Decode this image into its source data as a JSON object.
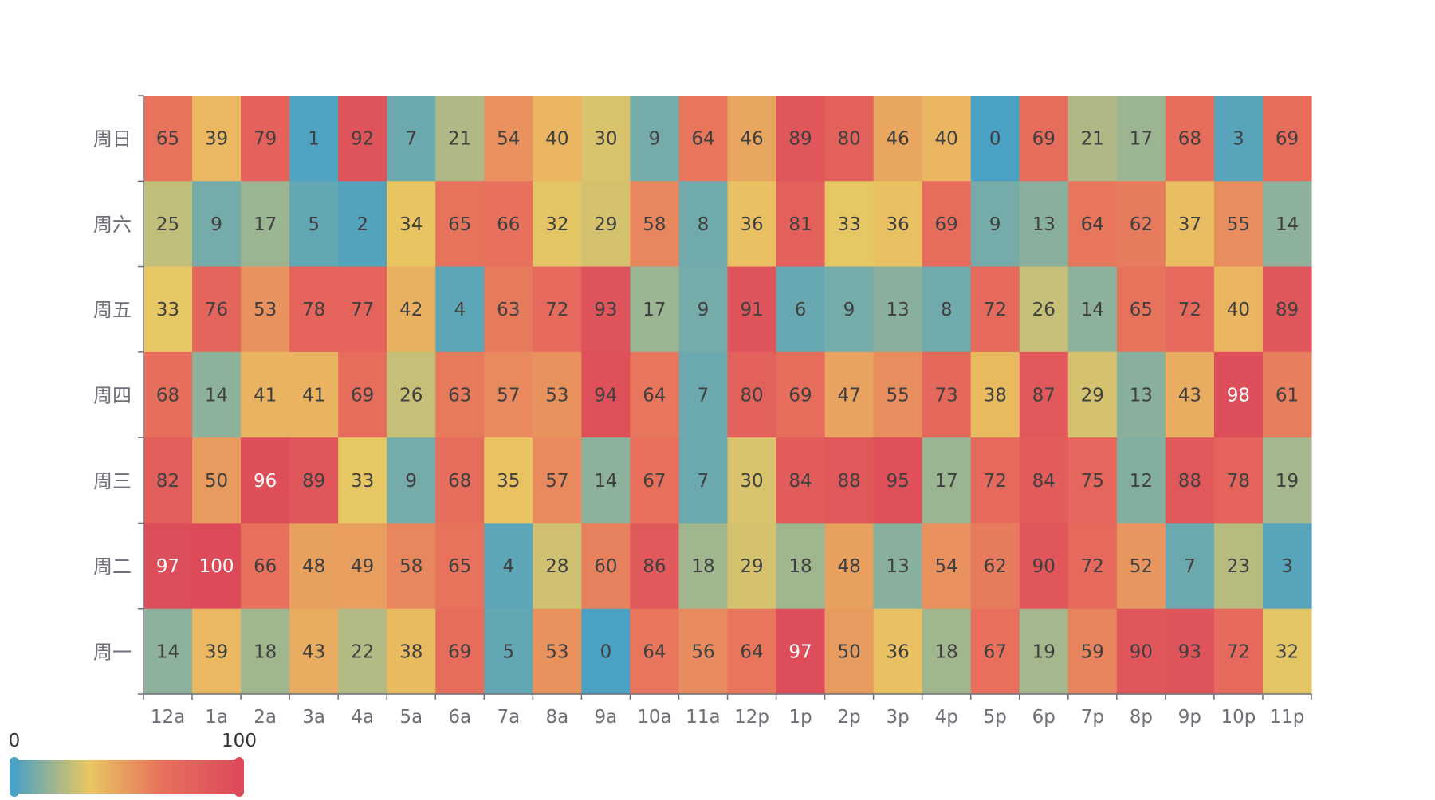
{
  "chart_data": {
    "type": "heatmap",
    "x_categories": [
      "12a",
      "1a",
      "2a",
      "3a",
      "4a",
      "5a",
      "6a",
      "7a",
      "8a",
      "9a",
      "10a",
      "11a",
      "12p",
      "1p",
      "2p",
      "3p",
      "4p",
      "5p",
      "6p",
      "7p",
      "8p",
      "9p",
      "10p",
      "11p"
    ],
    "y_categories": [
      "周日",
      "周六",
      "周五",
      "周四",
      "周三",
      "周二",
      "周一"
    ],
    "values": [
      [
        65,
        39,
        79,
        1,
        92,
        7,
        21,
        54,
        40,
        30,
        9,
        64,
        46,
        89,
        80,
        46,
        40,
        0,
        69,
        21,
        17,
        68,
        3,
        69
      ],
      [
        25,
        9,
        17,
        5,
        2,
        34,
        65,
        66,
        32,
        29,
        58,
        8,
        36,
        81,
        33,
        36,
        69,
        9,
        13,
        64,
        62,
        37,
        55,
        14
      ],
      [
        33,
        76,
        53,
        78,
        77,
        42,
        4,
        63,
        72,
        93,
        17,
        9,
        91,
        6,
        9,
        13,
        8,
        72,
        26,
        14,
        65,
        72,
        40,
        89
      ],
      [
        68,
        14,
        41,
        41,
        69,
        26,
        63,
        57,
        53,
        94,
        64,
        7,
        80,
        69,
        47,
        55,
        73,
        38,
        87,
        29,
        13,
        43,
        98,
        61
      ],
      [
        82,
        50,
        96,
        89,
        33,
        9,
        68,
        35,
        57,
        14,
        67,
        7,
        30,
        84,
        88,
        95,
        17,
        72,
        84,
        75,
        12,
        88,
        78,
        19
      ],
      [
        97,
        100,
        66,
        48,
        49,
        58,
        65,
        4,
        28,
        60,
        86,
        18,
        29,
        18,
        48,
        13,
        54,
        62,
        90,
        72,
        52,
        7,
        23,
        3
      ],
      [
        14,
        39,
        18,
        43,
        22,
        38,
        69,
        5,
        53,
        0,
        64,
        56,
        64,
        97,
        50,
        36,
        18,
        67,
        19,
        59,
        90,
        93,
        72,
        32
      ]
    ],
    "visual_map": {
      "min": 0,
      "max": 100,
      "min_label": "0",
      "max_label": "100",
      "colors": [
        "#4aa1c3",
        "#e9c762",
        "#e76f5c",
        "#dd4b5a"
      ]
    },
    "label_color_dark": "#404040",
    "label_color_light": "#ffffff",
    "axis_color": "#6e7079",
    "grid": false
  }
}
